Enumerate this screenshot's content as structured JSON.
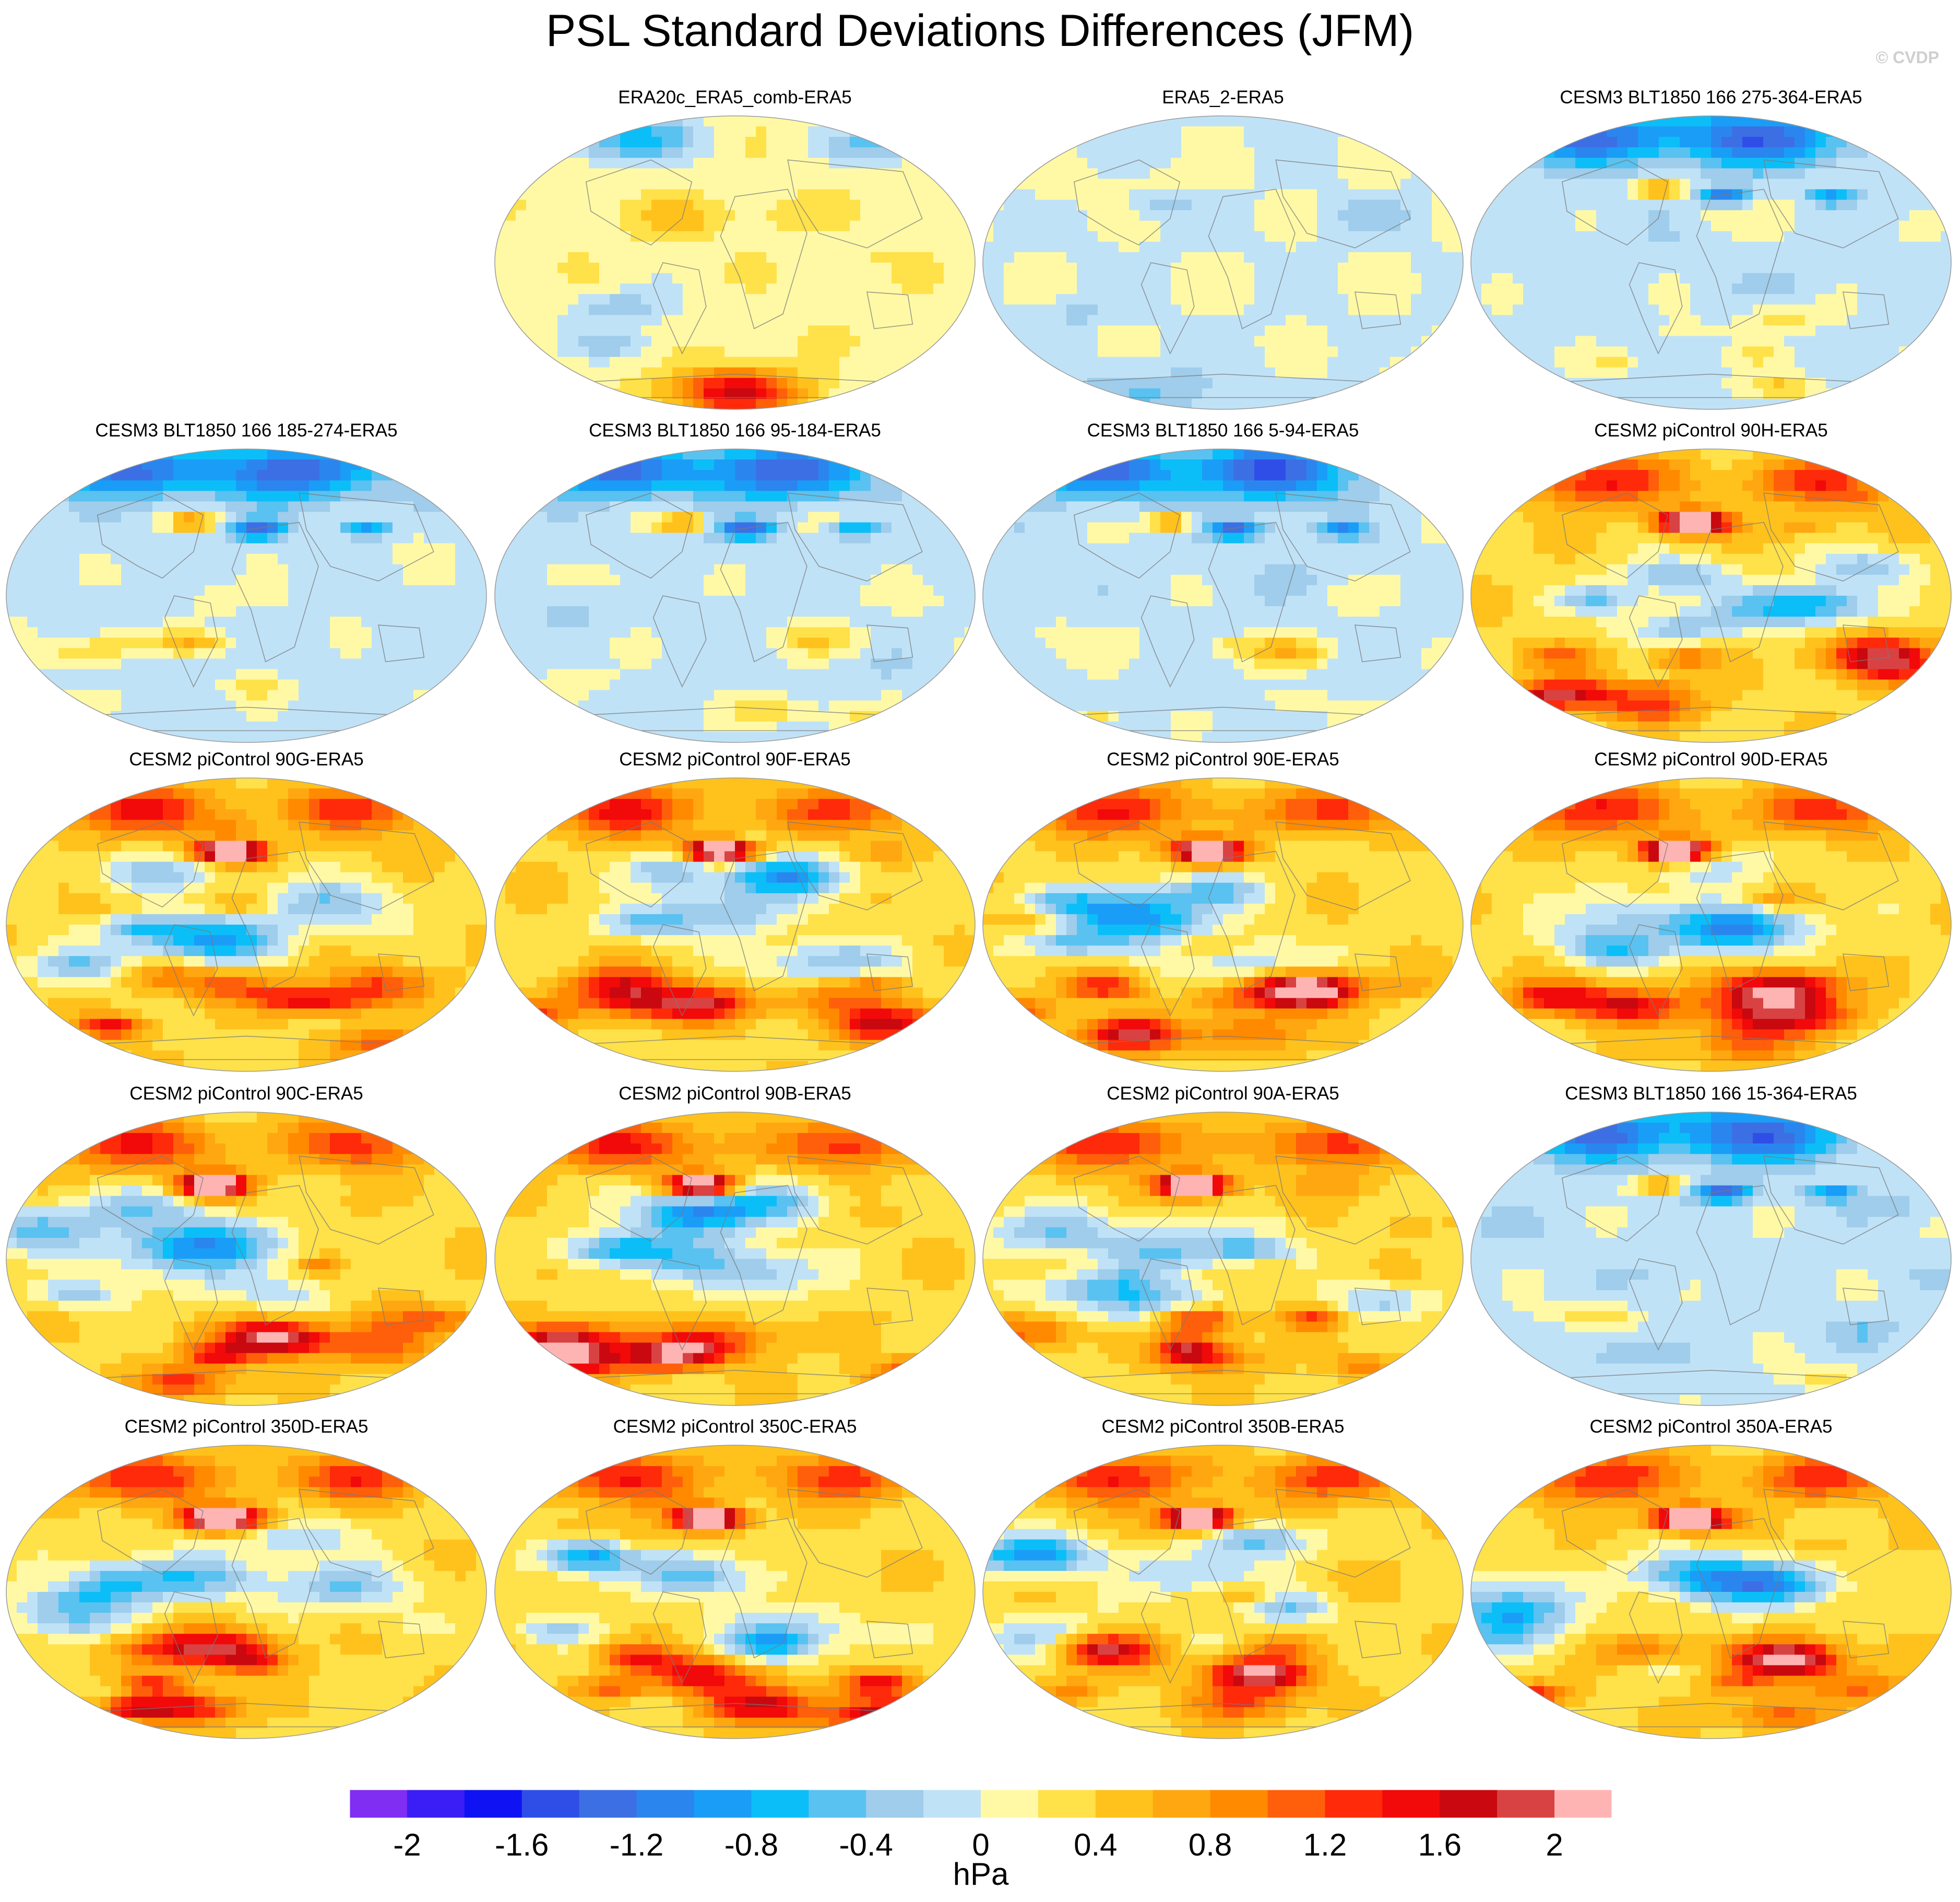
{
  "title": "PSL Standard Deviations Differences (JFM)",
  "credit": "© CVDP",
  "chart_data": {
    "type": "heatmap",
    "projection": "robinson-global",
    "season": "JFM",
    "grid_layout": "5 rows x 4 columns, top-left empty",
    "panels": [
      {
        "row": 0,
        "col": 1,
        "title": "ERA20c_ERA5_comb-ERA5",
        "pattern": "mixed"
      },
      {
        "row": 0,
        "col": 2,
        "title": "ERA5_2-ERA5",
        "pattern": "mostly-neutral"
      },
      {
        "row": 0,
        "col": 3,
        "title": "CESM3 BLT1850 166 275-364-ERA5",
        "pattern": "blue-north"
      },
      {
        "row": 1,
        "col": 0,
        "title": "CESM3 BLT1850 166 185-274-ERA5",
        "pattern": "blue-north"
      },
      {
        "row": 1,
        "col": 1,
        "title": "CESM3 BLT1850 166 95-184-ERA5",
        "pattern": "blue-north"
      },
      {
        "row": 1,
        "col": 2,
        "title": "CESM3 BLT1850 166 5-94-ERA5",
        "pattern": "blue-north"
      },
      {
        "row": 1,
        "col": 3,
        "title": "CESM2 piControl 90H-ERA5",
        "pattern": "red-strong"
      },
      {
        "row": 2,
        "col": 0,
        "title": "CESM2 piControl 90G-ERA5",
        "pattern": "red-strong"
      },
      {
        "row": 2,
        "col": 1,
        "title": "CESM2 piControl 90F-ERA5",
        "pattern": "red-strong"
      },
      {
        "row": 2,
        "col": 2,
        "title": "CESM2 piControl 90E-ERA5",
        "pattern": "red-strong"
      },
      {
        "row": 2,
        "col": 3,
        "title": "CESM2 piControl 90D-ERA5",
        "pattern": "red-strong"
      },
      {
        "row": 3,
        "col": 0,
        "title": "CESM2 piControl 90C-ERA5",
        "pattern": "red-strong"
      },
      {
        "row": 3,
        "col": 1,
        "title": "CESM2 piControl 90B-ERA5",
        "pattern": "red-strong"
      },
      {
        "row": 3,
        "col": 2,
        "title": "CESM2 piControl 90A-ERA5",
        "pattern": "red-strong"
      },
      {
        "row": 3,
        "col": 3,
        "title": "CESM3 BLT1850 166 15-364-ERA5",
        "pattern": "blue-north"
      },
      {
        "row": 4,
        "col": 0,
        "title": "CESM2 piControl 350D-ERA5",
        "pattern": "red-strong"
      },
      {
        "row": 4,
        "col": 1,
        "title": "CESM2 piControl 350C-ERA5",
        "pattern": "red-strong"
      },
      {
        "row": 4,
        "col": 2,
        "title": "CESM2 piControl 350B-ERA5",
        "pattern": "red-strong"
      },
      {
        "row": 4,
        "col": 3,
        "title": "CESM2 piControl 350A-ERA5",
        "pattern": "red-strong"
      }
    ],
    "colorbar": {
      "levels": [
        -2.2,
        -2,
        -1.8,
        -1.6,
        -1.4,
        -1.2,
        -1,
        -0.8,
        -0.6,
        -0.4,
        -0.2,
        0,
        0.2,
        0.4,
        0.6,
        0.8,
        1,
        1.2,
        1.4,
        1.6,
        1.8,
        2,
        2.2
      ],
      "colors": [
        "#7f2ef2",
        "#3b1ef5",
        "#0f12f2",
        "#2f4ee8",
        "#3c6fe4",
        "#2a86ee",
        "#1a9df7",
        "#0cbef8",
        "#59c2f0",
        "#9fcdeb",
        "#c0e2f7",
        "#fff9a6",
        "#ffe14a",
        "#ffc21c",
        "#ffa710",
        "#ff8a00",
        "#ff5f0a",
        "#ff2a0a",
        "#f2090a",
        "#c9090f",
        "#d94243",
        "#ffb4b4"
      ],
      "tick_values": [
        -2,
        -1.6,
        -1.2,
        -0.8,
        -0.4,
        0,
        0.4,
        0.8,
        1.2,
        1.6,
        2
      ],
      "tick_labels": [
        "-2",
        "-1.6",
        "-1.2",
        "-0.8",
        "-0.4",
        "0",
        "0.4",
        "0.8",
        "1.2",
        "1.6",
        "2"
      ],
      "units": "hPa"
    }
  }
}
